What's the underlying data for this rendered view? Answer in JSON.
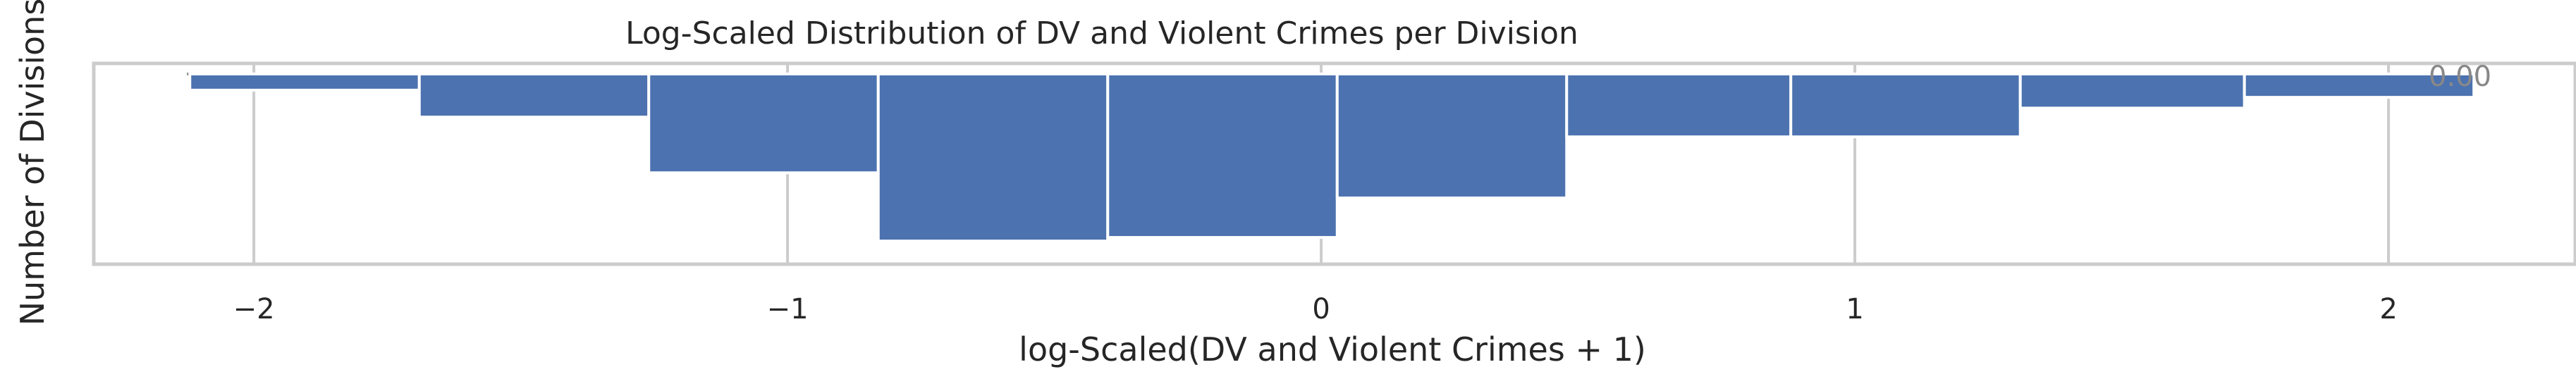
{
  "chart_data": {
    "type": "bar",
    "title": "Log-Scaled Distribution of DV and Violent Crimes per Division",
    "xlabel": "log-Scaled(DV and Violent Crimes + 1)",
    "ylabel": "Number of Divisions",
    "xlim": [
      -2.3,
      2.35
    ],
    "x_ticks": [
      {
        "value": -2,
        "label": "−2"
      },
      {
        "value": -1,
        "label": "−1"
      },
      {
        "value": 0,
        "label": "0"
      },
      {
        "value": 1,
        "label": "1"
      },
      {
        "value": 2,
        "label": "2"
      }
    ],
    "y_axis_inverted": true,
    "grid": true,
    "bar_color": "#4c72b0",
    "bins": [
      {
        "start": -2.12,
        "end": -1.69,
        "value": 0.09
      },
      {
        "start": -1.69,
        "end": -1.26,
        "value": 0.24
      },
      {
        "start": -1.26,
        "end": -0.83,
        "value": 0.55
      },
      {
        "start": -0.83,
        "end": -0.4,
        "value": 0.93
      },
      {
        "start": -0.4,
        "end": 0.03,
        "value": 0.91
      },
      {
        "start": 0.03,
        "end": 0.46,
        "value": 0.69
      },
      {
        "start": 0.46,
        "end": 0.88,
        "value": 0.35
      },
      {
        "start": 0.88,
        "end": 1.31,
        "value": 0.35
      },
      {
        "start": 1.31,
        "end": 1.73,
        "value": 0.19
      },
      {
        "start": 1.73,
        "end": 2.16,
        "value": 0.13
      }
    ],
    "annotations": [
      "0.00"
    ]
  }
}
